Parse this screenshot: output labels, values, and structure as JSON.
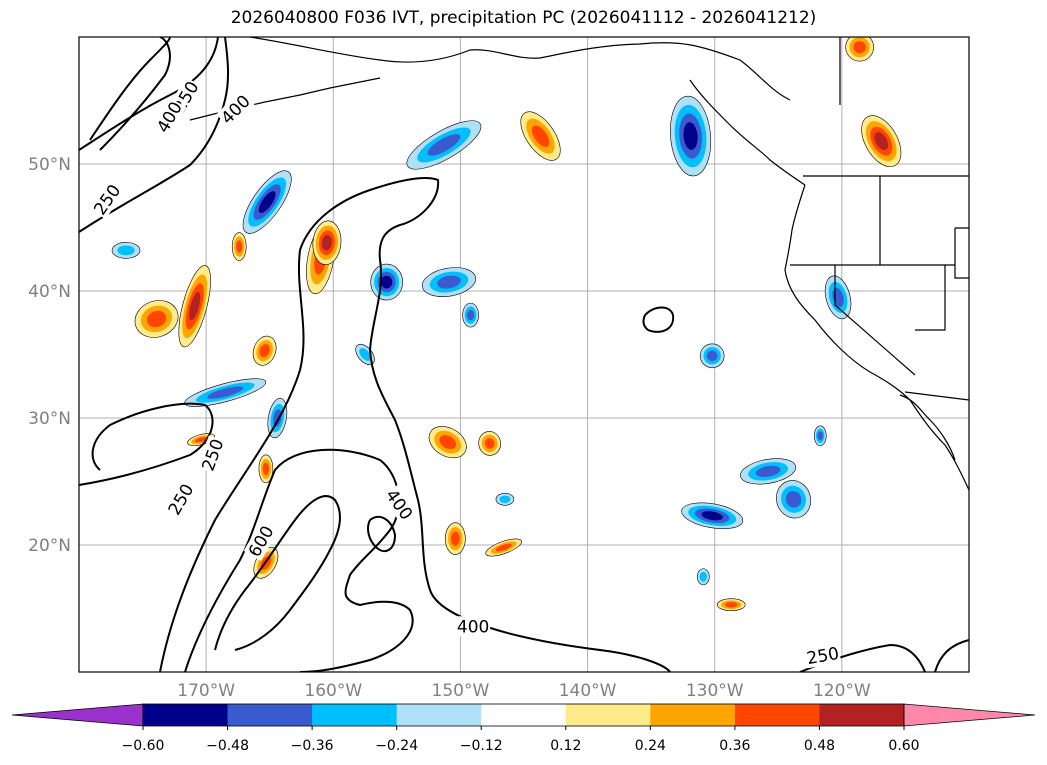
{
  "title": "2026040800 F036 IVT, precipitation PC (2026041112 - 2026041212)",
  "chart_data": {
    "type": "map",
    "map": {
      "lon_range": [
        -180,
        -110
      ],
      "lat_range": [
        10,
        60
      ],
      "lat_ticks": [
        {
          "value": 50,
          "label": "50°N"
        },
        {
          "value": 40,
          "label": "40°N"
        },
        {
          "value": 30,
          "label": "30°N"
        },
        {
          "value": 20,
          "label": "20°N"
        }
      ],
      "lon_ticks": [
        {
          "value": -170,
          "label": "170°W"
        },
        {
          "value": -160,
          "label": "160°W"
        },
        {
          "value": -150,
          "label": "150°W"
        },
        {
          "value": -140,
          "label": "140°W"
        },
        {
          "value": -130,
          "label": "130°W"
        },
        {
          "value": -120,
          "label": "120°W"
        }
      ],
      "grid": true
    },
    "ivt_contours": {
      "levels": [
        250,
        400,
        600
      ],
      "labels": [
        {
          "text": "250",
          "lon": -171.6,
          "lat": 55.3,
          "angle": -60
        },
        {
          "text": "400",
          "lon": -172.9,
          "lat": 53.7,
          "angle": -60
        },
        {
          "text": "400",
          "lon": -167.7,
          "lat": 54.3,
          "angle": -45
        },
        {
          "text": "250",
          "lon": -177.8,
          "lat": 47.2,
          "angle": -55
        },
        {
          "text": "250",
          "lon": -169.5,
          "lat": 27.1,
          "angle": -70
        },
        {
          "text": "250",
          "lon": -172.0,
          "lat": 23.6,
          "angle": -60
        },
        {
          "text": "600",
          "lon": -165.7,
          "lat": 20.3,
          "angle": -60
        },
        {
          "text": "400",
          "lon": -154.8,
          "lat": 23.2,
          "angle": 55
        },
        {
          "text": "400",
          "lon": -149.0,
          "lat": 13.6,
          "angle": 0
        },
        {
          "text": "250",
          "lon": -121.5,
          "lat": 11.3,
          "angle": -10
        }
      ]
    },
    "precip_pc": {
      "colorbar": {
        "ticks": [
          -0.6,
          -0.48,
          -0.36,
          -0.24,
          -0.12,
          0.12,
          0.24,
          0.36,
          0.48,
          0.6
        ],
        "tick_labels": [
          "−0.60",
          "−0.48",
          "−0.36",
          "−0.24",
          "−0.12",
          "0.12",
          "0.24",
          "0.36",
          "0.48",
          "0.60"
        ],
        "colors": [
          "#9932cc",
          "#00008b",
          "#3a5bcf",
          "#00bfff",
          "#b0e0f8",
          "#ffffff",
          "#ffeb8a",
          "#ffa500",
          "#ff4500",
          "#b22222",
          "#ff88aa"
        ],
        "extend": "both"
      },
      "features": [
        {
          "lon": -170.9,
          "lat": 38.8,
          "rx": 12,
          "ry": 42,
          "rot": 15,
          "value": 0.55
        },
        {
          "lon": -173.9,
          "lat": 37.8,
          "rx": 22,
          "ry": 18,
          "rot": -20,
          "value": 0.42
        },
        {
          "lon": -161.0,
          "lat": 42.5,
          "rx": 13,
          "ry": 35,
          "rot": 10,
          "value": 0.45
        },
        {
          "lon": -165.4,
          "lat": 35.3,
          "rx": 11,
          "ry": 15,
          "rot": 20,
          "value": 0.4
        },
        {
          "lon": -167.4,
          "lat": 43.5,
          "rx": 7,
          "ry": 14,
          "rot": 0,
          "value": 0.36
        },
        {
          "lon": -151.0,
          "lat": 28.1,
          "rx": 20,
          "ry": 14,
          "rot": 30,
          "value": 0.45
        },
        {
          "lon": -147.7,
          "lat": 28.0,
          "rx": 11,
          "ry": 12,
          "rot": -10,
          "value": 0.38
        },
        {
          "lon": -143.7,
          "lat": 52.2,
          "rx": 14,
          "ry": 28,
          "rot": -35,
          "value": 0.38
        },
        {
          "lon": -160.5,
          "lat": 43.8,
          "rx": 14,
          "ry": 22,
          "rot": 5,
          "value": 0.48
        },
        {
          "lon": -116.9,
          "lat": 51.8,
          "rx": 16,
          "ry": 28,
          "rot": -30,
          "value": 0.5
        },
        {
          "lon": -170.4,
          "lat": 28.3,
          "rx": 14,
          "ry": 5,
          "rot": -15,
          "value": 0.38
        },
        {
          "lon": -165.3,
          "lat": 26.0,
          "rx": 7,
          "ry": 14,
          "rot": 0,
          "value": 0.36
        },
        {
          "lon": -165.3,
          "lat": 18.6,
          "rx": 10,
          "ry": 17,
          "rot": 30,
          "value": 0.4
        },
        {
          "lon": -150.4,
          "lat": 20.5,
          "rx": 10,
          "ry": 16,
          "rot": 0,
          "value": 0.36
        },
        {
          "lon": -146.6,
          "lat": 19.8,
          "rx": 19,
          "ry": 6,
          "rot": -20,
          "value": 0.38
        },
        {
          "lon": -128.7,
          "lat": 15.3,
          "rx": 14,
          "ry": 6,
          "rot": 0,
          "value": 0.36
        },
        {
          "lon": -118.6,
          "lat": 59.2,
          "rx": 14,
          "ry": 14,
          "rot": 0,
          "value": 0.4
        },
        {
          "lon": -164.4,
          "lat": 30.0,
          "rx": 9,
          "ry": 20,
          "rot": 10,
          "value": -0.36
        },
        {
          "lon": -165.2,
          "lat": 47.0,
          "rx": 14,
          "ry": 37,
          "rot": 35,
          "value": -0.48
        },
        {
          "lon": -155.8,
          "lat": 40.7,
          "rx": 16,
          "ry": 18,
          "rot": 0,
          "value": -0.5
        },
        {
          "lon": -150.9,
          "lat": 40.7,
          "rx": 27,
          "ry": 14,
          "rot": -10,
          "value": -0.42
        },
        {
          "lon": -151.3,
          "lat": 51.5,
          "rx": 14,
          "ry": 42,
          "rot": 60,
          "value": -0.36
        },
        {
          "lon": -168.5,
          "lat": 32.0,
          "rx": 42,
          "ry": 9,
          "rot": -15,
          "value": -0.36
        },
        {
          "lon": -131.9,
          "lat": 52.2,
          "rx": 20,
          "ry": 40,
          "rot": -5,
          "value": -0.55
        },
        {
          "lon": -130.2,
          "lat": 22.3,
          "rx": 31,
          "ry": 12,
          "rot": 10,
          "value": -0.5
        },
        {
          "lon": -123.8,
          "lat": 23.6,
          "rx": 17,
          "ry": 19,
          "rot": -20,
          "value": -0.36
        },
        {
          "lon": -125.8,
          "lat": 25.8,
          "rx": 28,
          "ry": 12,
          "rot": -10,
          "value": -0.42
        },
        {
          "lon": -121.7,
          "lat": 28.6,
          "rx": 6,
          "ry": 10,
          "rot": 0,
          "value": -0.4
        },
        {
          "lon": -120.3,
          "lat": 39.5,
          "rx": 12,
          "ry": 22,
          "rot": -15,
          "value": -0.36
        },
        {
          "lon": -130.2,
          "lat": 34.9,
          "rx": 12,
          "ry": 12,
          "rot": 0,
          "value": -0.42
        },
        {
          "lon": -149.2,
          "lat": 38.1,
          "rx": 8,
          "ry": 12,
          "rot": 0,
          "value": -0.36
        },
        {
          "lon": -157.5,
          "lat": 35.0,
          "rx": 7,
          "ry": 12,
          "rot": -40,
          "value": -0.3
        },
        {
          "lon": -146.5,
          "lat": 23.6,
          "rx": 9,
          "ry": 6,
          "rot": 0,
          "value": -0.3
        },
        {
          "lon": -130.9,
          "lat": 17.5,
          "rx": 6,
          "ry": 8,
          "rot": 0,
          "value": -0.3
        },
        {
          "lon": -176.3,
          "lat": 43.2,
          "rx": 14,
          "ry": 8,
          "rot": 0,
          "value": -0.3
        }
      ]
    }
  }
}
